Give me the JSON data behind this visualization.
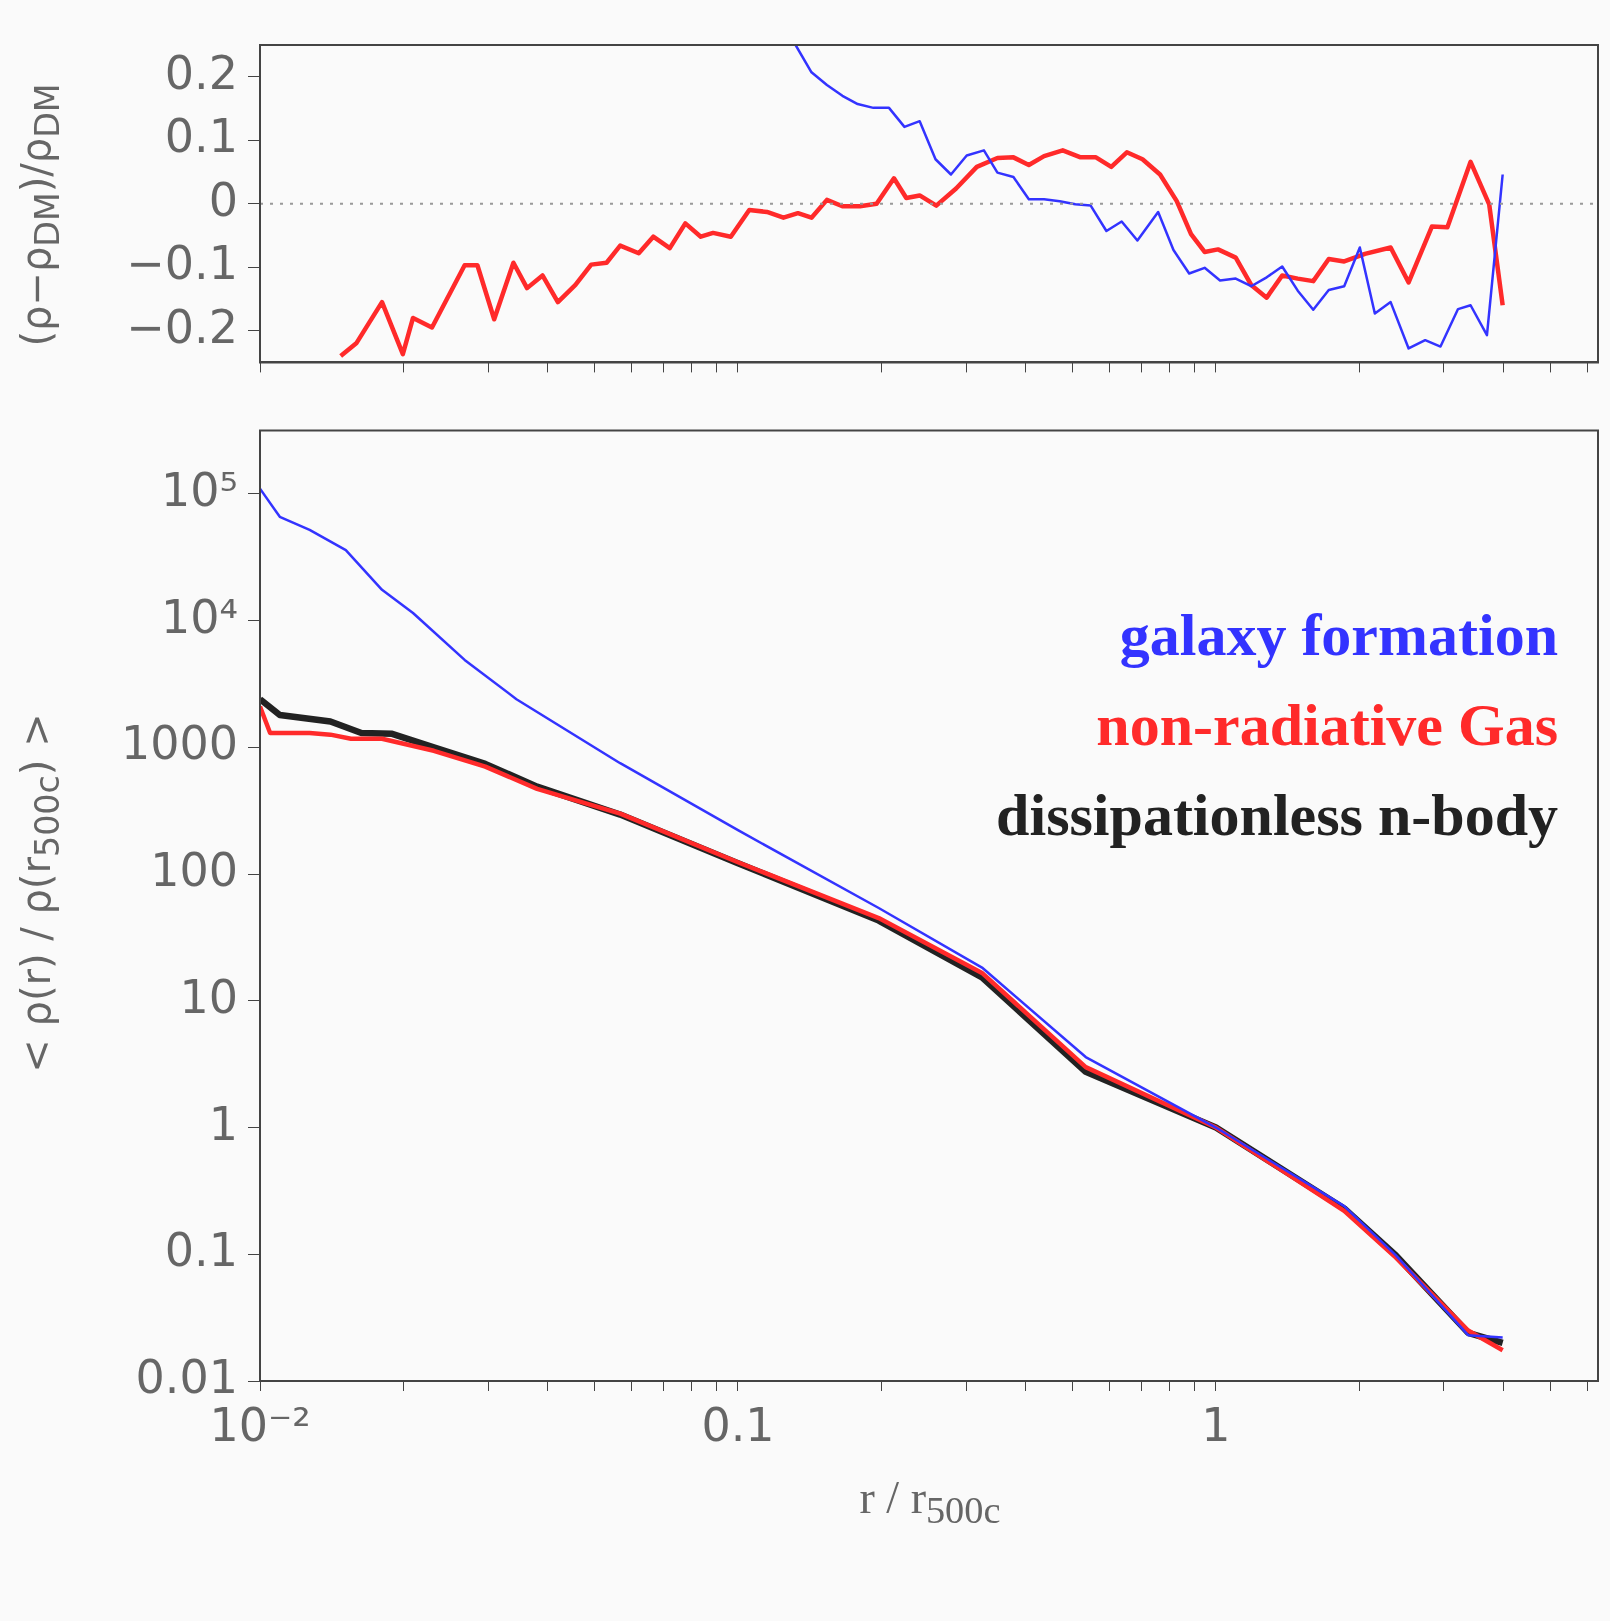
{
  "chart_data": [
    {
      "type": "line",
      "ylabel": "(ρ−ρ$_{DM}$)/ρ$_{DM}$",
      "log": "x",
      "xlim": [
        0.01,
        6.3
      ],
      "ylim": [
        -0.25,
        0.25
      ],
      "xticks": [
        {
          "value": 0.01,
          "label": null
        },
        {
          "value": 0.02,
          "label": null
        },
        {
          "value": 0.03,
          "label": null
        },
        {
          "value": 0.04,
          "label": null
        },
        {
          "value": 0.05,
          "label": null
        },
        {
          "value": 0.06,
          "label": null
        },
        {
          "value": 0.07,
          "label": null
        },
        {
          "value": 0.08,
          "label": null
        },
        {
          "value": 0.09,
          "label": null
        },
        {
          "value": 0.1,
          "label": null
        },
        {
          "value": 0.2,
          "label": null
        },
        {
          "value": 0.3,
          "label": null
        },
        {
          "value": 0.4,
          "label": null
        },
        {
          "value": 0.5,
          "label": null
        },
        {
          "value": 0.6,
          "label": null
        },
        {
          "value": 0.7,
          "label": null
        },
        {
          "value": 0.8,
          "label": null
        },
        {
          "value": 0.9,
          "label": null
        },
        {
          "value": 1,
          "label": null
        },
        {
          "value": 2,
          "label": null
        },
        {
          "value": 3,
          "label": null
        },
        {
          "value": 4,
          "label": null
        },
        {
          "value": 5,
          "label": null
        },
        {
          "value": 6,
          "label": null
        }
      ],
      "yticks": [
        {
          "value": -0.2,
          "label": "−0.2"
        },
        {
          "value": -0.1,
          "label": "−0.1"
        },
        0,
        0.1,
        0.2
      ],
      "tick_labels": "y",
      "grid": false,
      "ref_lines": [
        {
          "axis": "y",
          "value": 0,
          "color": "#999999",
          "line_style": "dotted"
        }
      ],
      "series": [
        {
          "color": "#3333ff",
          "x": [
            0.132,
            0.1425,
            0.1535,
            0.1654,
            0.178,
            0.192,
            0.207,
            0.223,
            0.24,
            0.259,
            0.279,
            0.301,
            0.327,
            0.349,
            0.377,
            0.406,
            0.437,
            0.471,
            0.508,
            0.547,
            0.59,
            0.635,
            0.685,
            0.757,
            0.815,
            0.879,
            0.947,
            1.02,
            1.1,
            1.185,
            1.277,
            1.376,
            1.483,
            1.598,
            1.722,
            1.855,
            2.0,
            2.15,
            2.32,
            2.53,
            2.74,
            2.95,
            3.21,
            3.41,
            3.69,
            3.98
          ],
          "values": [
            0.25,
            0.207,
            0.187,
            0.17,
            0.157,
            0.151,
            0.151,
            0.121,
            0.13,
            0.07,
            0.046,
            0.076,
            0.084,
            0.049,
            0.042,
            0.007,
            0.007,
            0.004,
            -0.001,
            -0.003,
            -0.043,
            -0.028,
            -0.058,
            -0.013,
            -0.073,
            -0.11,
            -0.101,
            -0.121,
            -0.118,
            -0.13,
            -0.116,
            -0.099,
            -0.137,
            -0.167,
            -0.136,
            -0.13,
            -0.069,
            -0.173,
            -0.155,
            -0.228,
            -0.215,
            -0.225,
            -0.166,
            -0.16,
            -0.207,
            0.046
          ]
        },
        {
          "color": "#ff2a2a",
          "x": [
            0.01475,
            0.0159,
            0.018,
            0.0199,
            0.0209,
            0.0229,
            0.0268,
            0.0285,
            0.0309,
            0.0339,
            0.0362,
            0.039,
            0.042,
            0.0457,
            0.0493,
            0.0531,
            0.0567,
            0.062,
            0.0665,
            0.072,
            0.0776,
            0.0836,
            0.0887,
            0.0966,
            0.1056,
            0.115,
            0.1245,
            0.1335,
            0.1425,
            0.1535,
            0.1654,
            0.18,
            0.195,
            0.212,
            0.225,
            0.24,
            0.26,
            0.286,
            0.316,
            0.349,
            0.377,
            0.406,
            0.437,
            0.478,
            0.521,
            0.561,
            0.604,
            0.651,
            0.702,
            0.764,
            0.828,
            0.887,
            0.947,
            1.01,
            1.1,
            1.185,
            1.277,
            1.376,
            1.483,
            1.598,
            1.722,
            1.855,
            2.05,
            2.32,
            2.53,
            2.83,
            3.05,
            3.41,
            3.73,
            3.98
          ],
          "values": [
            -0.24,
            -0.22,
            -0.155,
            -0.237,
            -0.18,
            -0.195,
            -0.097,
            -0.097,
            -0.182,
            -0.093,
            -0.133,
            -0.113,
            -0.155,
            -0.128,
            -0.096,
            -0.093,
            -0.066,
            -0.078,
            -0.052,
            -0.07,
            -0.031,
            -0.052,
            -0.046,
            -0.052,
            -0.01,
            -0.013,
            -0.022,
            -0.015,
            -0.022,
            0.006,
            -0.004,
            -0.004,
            0.0,
            0.04,
            0.009,
            0.013,
            -0.003,
            0.024,
            0.058,
            0.072,
            0.073,
            0.061,
            0.075,
            0.084,
            0.073,
            0.073,
            0.058,
            0.081,
            0.07,
            0.046,
            0.004,
            -0.048,
            -0.076,
            -0.072,
            -0.085,
            -0.128,
            -0.148,
            -0.113,
            -0.118,
            -0.122,
            -0.087,
            -0.091,
            -0.079,
            -0.069,
            -0.124,
            -0.036,
            -0.037,
            0.066,
            -0.001,
            -0.16
          ]
        }
      ]
    },
    {
      "type": "line",
      "xlabel": "r / r$_{500c}$",
      "ylabel": "< ρ(r) / ρ(r$_{500c}$) >",
      "log": "xy",
      "xlim": [
        0.01,
        6.3
      ],
      "ylim": [
        0.01,
        316000
      ],
      "xticks": [
        {
          "value": 0.01,
          "label": "10⁻²"
        },
        {
          "value": 0.02,
          "label": null
        },
        {
          "value": 0.03,
          "label": null
        },
        {
          "value": 0.04,
          "label": null
        },
        {
          "value": 0.05,
          "label": null
        },
        {
          "value": 0.06,
          "label": null
        },
        {
          "value": 0.07,
          "label": null
        },
        {
          "value": 0.08,
          "label": null
        },
        {
          "value": 0.09,
          "label": null
        },
        0.1,
        {
          "value": 0.2,
          "label": null
        },
        {
          "value": 0.3,
          "label": null
        },
        {
          "value": 0.4,
          "label": null
        },
        {
          "value": 0.5,
          "label": null
        },
        {
          "value": 0.6,
          "label": null
        },
        {
          "value": 0.7,
          "label": null
        },
        {
          "value": 0.8,
          "label": null
        },
        {
          "value": 0.9,
          "label": null
        },
        1,
        {
          "value": 2,
          "label": null
        },
        {
          "value": 3,
          "label": null
        },
        {
          "value": 4,
          "label": null
        },
        {
          "value": 5,
          "label": null
        },
        {
          "value": 6,
          "label": null
        }
      ],
      "yticks": [
        0.01,
        0.1,
        1,
        10,
        100,
        1000,
        {
          "value": 10000,
          "label": "10⁴"
        },
        {
          "value": 100000,
          "label": "10⁵"
        }
      ],
      "grid": false,
      "legend": "right",
      "series": [
        {
          "name": "galaxy formation",
          "color": "#3333ff",
          "x": [
            0.01,
            0.011,
            0.0127,
            0.01512,
            0.018,
            0.0209,
            0.0268,
            0.0344,
            0.0567,
            0.1,
            0.197,
            0.324,
            0.534,
            1.0,
            1.855,
            2.38,
            3.37,
            3.98
          ],
          "values": [
            110000,
            66000,
            52000,
            36000,
            17500,
            11500,
            4900,
            2400,
            750,
            222,
            54,
            18.3,
            3.6,
            1.0,
            0.24,
            0.098,
            0.023,
            0.022
          ]
        },
        {
          "name": "non-radiative Gas",
          "color": "#ff2a2a",
          "x": [
            0.01,
            0.0105,
            0.0127,
            0.01404,
            0.0155,
            0.018,
            0.0231,
            0.0296,
            0.038,
            0.0567,
            0.1,
            0.197,
            0.324,
            0.534,
            1.0,
            1.855,
            2.38,
            3.37,
            3.98
          ],
          "values": [
            2100,
            1300,
            1300,
            1260,
            1170,
            1170,
            940,
            705,
            470,
            300,
            124,
            45,
            16.6,
            3.0,
            1.0,
            0.22,
            0.094,
            0.025,
            0.0175
          ]
        },
        {
          "name": "dissipationless n-body",
          "color": "#222222",
          "x": [
            0.01,
            0.011,
            0.01404,
            0.0163,
            0.0189,
            0.0231,
            0.0296,
            0.038,
            0.0567,
            0.1,
            0.197,
            0.324,
            0.534,
            1.0,
            1.855,
            2.38,
            3.37,
            3.98
          ],
          "values": [
            2400,
            1800,
            1600,
            1300,
            1280,
            1000,
            740,
            490,
            295,
            122,
            43,
            15.3,
            2.75,
            1.0,
            0.23,
            0.098,
            0.024,
            0.02
          ]
        }
      ]
    }
  ]
}
